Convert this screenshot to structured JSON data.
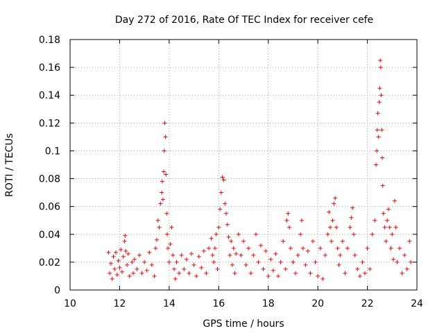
{
  "chart_data": {
    "type": "scatter",
    "title": "Day 272 of 2016, Rate Of TEC Index for receiver cefe",
    "xlabel": "GPS time / hours",
    "ylabel": "ROTI / TECUs",
    "xlim": [
      10,
      24
    ],
    "ylim": [
      0,
      0.18
    ],
    "grid": true,
    "marker": "+",
    "colors": {
      "points": "#ff0000",
      "grid": "#a0a0a0",
      "axes": "#000000"
    },
    "x_ticks": [
      {
        "value": 10,
        "label": "10"
      },
      {
        "value": 12,
        "label": "12"
      },
      {
        "value": 14,
        "label": "14"
      },
      {
        "value": 16,
        "label": "16"
      },
      {
        "value": 18,
        "label": "18"
      },
      {
        "value": 20,
        "label": "20"
      },
      {
        "value": 22,
        "label": "22"
      },
      {
        "value": 24,
        "label": "24"
      }
    ],
    "y_ticks": [
      {
        "value": 0,
        "label": "0"
      },
      {
        "value": 0.02,
        "label": "0.02"
      },
      {
        "value": 0.04,
        "label": "0.04"
      },
      {
        "value": 0.06,
        "label": "0.06"
      },
      {
        "value": 0.08,
        "label": "0.08"
      },
      {
        "value": 0.1,
        "label": "0.1"
      },
      {
        "value": 0.12,
        "label": "0.12"
      },
      {
        "value": 0.14,
        "label": "0.14"
      },
      {
        "value": 0.16,
        "label": "0.16"
      },
      {
        "value": 0.18,
        "label": "0.18"
      }
    ],
    "points": [
      [
        11.55,
        0.027
      ],
      [
        11.6,
        0.012
      ],
      [
        11.65,
        0.019
      ],
      [
        11.7,
        0.008
      ],
      [
        11.75,
        0.024
      ],
      [
        11.8,
        0.015
      ],
      [
        11.85,
        0.027
      ],
      [
        11.9,
        0.011
      ],
      [
        11.95,
        0.021
      ],
      [
        12.0,
        0.016
      ],
      [
        12.05,
        0.029
      ],
      [
        12.1,
        0.013
      ],
      [
        12.15,
        0.024
      ],
      [
        12.2,
        0.035
      ],
      [
        12.22,
        0.039
      ],
      [
        12.25,
        0.028
      ],
      [
        12.3,
        0.018
      ],
      [
        12.35,
        0.026
      ],
      [
        12.4,
        0.01
      ],
      [
        12.5,
        0.02
      ],
      [
        12.55,
        0.012
      ],
      [
        12.6,
        0.022
      ],
      [
        12.7,
        0.015
      ],
      [
        12.8,
        0.025
      ],
      [
        12.9,
        0.012
      ],
      [
        13.0,
        0.02
      ],
      [
        13.1,
        0.014
      ],
      [
        13.2,
        0.027
      ],
      [
        13.3,
        0.018
      ],
      [
        13.4,
        0.01
      ],
      [
        13.45,
        0.03
      ],
      [
        13.5,
        0.036
      ],
      [
        13.55,
        0.05
      ],
      [
        13.6,
        0.045
      ],
      [
        13.65,
        0.062
      ],
      [
        13.7,
        0.07
      ],
      [
        13.72,
        0.078
      ],
      [
        13.75,
        0.065
      ],
      [
        13.78,
        0.085
      ],
      [
        13.8,
        0.1
      ],
      [
        13.82,
        0.12
      ],
      [
        13.85,
        0.11
      ],
      [
        13.87,
        0.083
      ],
      [
        13.9,
        0.055
      ],
      [
        13.92,
        0.04
      ],
      [
        13.95,
        0.03
      ],
      [
        14.0,
        0.02
      ],
      [
        14.05,
        0.033
      ],
      [
        14.1,
        0.045
      ],
      [
        14.15,
        0.025
      ],
      [
        14.2,
        0.015
      ],
      [
        14.25,
        0.008
      ],
      [
        14.3,
        0.02
      ],
      [
        14.4,
        0.012
      ],
      [
        14.5,
        0.025
      ],
      [
        14.6,
        0.015
      ],
      [
        14.7,
        0.022
      ],
      [
        14.8,
        0.012
      ],
      [
        14.9,
        0.026
      ],
      [
        15.0,
        0.018
      ],
      [
        15.1,
        0.01
      ],
      [
        15.2,
        0.024
      ],
      [
        15.3,
        0.016
      ],
      [
        15.4,
        0.028
      ],
      [
        15.5,
        0.012
      ],
      [
        15.6,
        0.03
      ],
      [
        15.7,
        0.037
      ],
      [
        15.75,
        0.025
      ],
      [
        15.8,
        0.02
      ],
      [
        15.85,
        0.03
      ],
      [
        15.9,
        0.04
      ],
      [
        15.95,
        0.015
      ],
      [
        16.0,
        0.045
      ],
      [
        16.05,
        0.058
      ],
      [
        16.1,
        0.07
      ],
      [
        16.15,
        0.081
      ],
      [
        16.2,
        0.079
      ],
      [
        16.25,
        0.062
      ],
      [
        16.3,
        0.055
      ],
      [
        16.35,
        0.047
      ],
      [
        16.4,
        0.038
      ],
      [
        16.45,
        0.025
      ],
      [
        16.5,
        0.035
      ],
      [
        16.55,
        0.018
      ],
      [
        16.6,
        0.03
      ],
      [
        16.65,
        0.012
      ],
      [
        16.7,
        0.026
      ],
      [
        16.8,
        0.04
      ],
      [
        16.9,
        0.025
      ],
      [
        17.0,
        0.035
      ],
      [
        17.1,
        0.018
      ],
      [
        17.2,
        0.03
      ],
      [
        17.3,
        0.012
      ],
      [
        17.4,
        0.025
      ],
      [
        17.5,
        0.04
      ],
      [
        17.6,
        0.02
      ],
      [
        17.7,
        0.032
      ],
      [
        17.8,
        0.015
      ],
      [
        17.9,
        0.028
      ],
      [
        18.0,
        0.01
      ],
      [
        18.1,
        0.022
      ],
      [
        18.2,
        0.014
      ],
      [
        18.3,
        0.026
      ],
      [
        18.4,
        0.01
      ],
      [
        18.5,
        0.02
      ],
      [
        18.6,
        0.035
      ],
      [
        18.7,
        0.015
      ],
      [
        18.75,
        0.05
      ],
      [
        18.8,
        0.055
      ],
      [
        18.85,
        0.045
      ],
      [
        18.9,
        0.03
      ],
      [
        19.0,
        0.02
      ],
      [
        19.1,
        0.012
      ],
      [
        19.2,
        0.025
      ],
      [
        19.3,
        0.04
      ],
      [
        19.35,
        0.05
      ],
      [
        19.4,
        0.03
      ],
      [
        19.5,
        0.018
      ],
      [
        19.6,
        0.028
      ],
      [
        19.7,
        0.012
      ],
      [
        19.8,
        0.035
      ],
      [
        19.9,
        0.02
      ],
      [
        20.0,
        0.01
      ],
      [
        20.1,
        0.03
      ],
      [
        20.2,
        0.008
      ],
      [
        20.3,
        0.025
      ],
      [
        20.4,
        0.04
      ],
      [
        20.45,
        0.056
      ],
      [
        20.5,
        0.045
      ],
      [
        20.55,
        0.035
      ],
      [
        20.6,
        0.05
      ],
      [
        20.65,
        0.062
      ],
      [
        20.7,
        0.066
      ],
      [
        20.75,
        0.045
      ],
      [
        20.8,
        0.03
      ],
      [
        20.85,
        0.018
      ],
      [
        20.9,
        0.025
      ],
      [
        21.0,
        0.035
      ],
      [
        21.1,
        0.012
      ],
      [
        21.2,
        0.03
      ],
      [
        21.3,
        0.045
      ],
      [
        21.35,
        0.052
      ],
      [
        21.4,
        0.059
      ],
      [
        21.45,
        0.04
      ],
      [
        21.5,
        0.025
      ],
      [
        21.6,
        0.015
      ],
      [
        21.7,
        0.01
      ],
      [
        21.8,
        0.02
      ],
      [
        21.9,
        0.012
      ],
      [
        22.0,
        0.03
      ],
      [
        22.1,
        0.015
      ],
      [
        22.2,
        0.04
      ],
      [
        22.3,
        0.05
      ],
      [
        22.35,
        0.09
      ],
      [
        22.38,
        0.1
      ],
      [
        22.4,
        0.115
      ],
      [
        22.42,
        0.127
      ],
      [
        22.45,
        0.11
      ],
      [
        22.48,
        0.135
      ],
      [
        22.5,
        0.145
      ],
      [
        22.52,
        0.165
      ],
      [
        22.54,
        0.16
      ],
      [
        22.56,
        0.14
      ],
      [
        22.58,
        0.115
      ],
      [
        22.6,
        0.095
      ],
      [
        22.62,
        0.075
      ],
      [
        22.65,
        0.055
      ],
      [
        22.7,
        0.045
      ],
      [
        22.75,
        0.035
      ],
      [
        22.8,
        0.05
      ],
      [
        22.85,
        0.058
      ],
      [
        22.9,
        0.045
      ],
      [
        22.95,
        0.03
      ],
      [
        23.0,
        0.04
      ],
      [
        23.05,
        0.022
      ],
      [
        23.1,
        0.064
      ],
      [
        23.15,
        0.045
      ],
      [
        23.2,
        0.02
      ],
      [
        23.3,
        0.03
      ],
      [
        23.4,
        0.012
      ],
      [
        23.5,
        0.025
      ],
      [
        23.6,
        0.015
      ],
      [
        23.7,
        0.035
      ],
      [
        23.75,
        0.02
      ]
    ]
  }
}
